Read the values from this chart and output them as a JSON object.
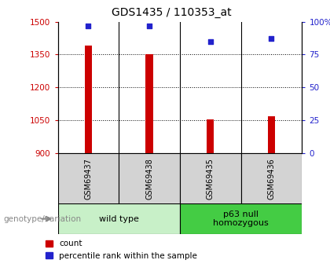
{
  "title": "GDS1435 / 110353_at",
  "samples": [
    "GSM69437",
    "GSM69438",
    "GSM69435",
    "GSM69436"
  ],
  "group_labels": [
    "wild type",
    "p63 null\nhomozygous"
  ],
  "counts": [
    1390,
    1350,
    1055,
    1070
  ],
  "percentiles": [
    97,
    97,
    85,
    87
  ],
  "ylim_left": [
    900,
    1500
  ],
  "ylim_right": [
    0,
    100
  ],
  "yticks_left": [
    900,
    1050,
    1200,
    1350,
    1500
  ],
  "yticks_right": [
    0,
    25,
    50,
    75,
    100
  ],
  "bar_color": "#cc0000",
  "dot_color": "#2222cc",
  "bar_width": 0.12,
  "bg_sample": "#d3d3d3",
  "bg_group_wt": "#c8f0c8",
  "bg_group_p63": "#44cc44",
  "legend_count_label": "count",
  "legend_pct_label": "percentile rank within the sample",
  "genotype_label": "genotype/variation"
}
